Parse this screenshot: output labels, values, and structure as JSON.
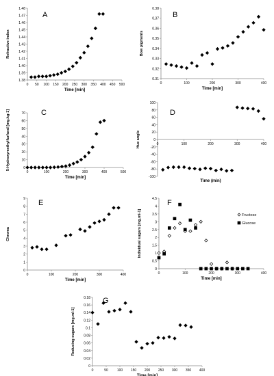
{
  "chart_data": [
    {
      "id": "A",
      "type": "scatter",
      "panel_label": "A",
      "xlabel": "Time [min]",
      "ylabel": "Refractive index",
      "xlim": [
        0,
        500
      ],
      "ylim": [
        1.38,
        1.48
      ],
      "xticks": [
        0,
        50,
        100,
        150,
        200,
        250,
        300,
        350,
        400,
        450,
        500
      ],
      "yticks": [
        1.38,
        1.39,
        1.4,
        1.41,
        1.42,
        1.43,
        1.44,
        1.45,
        1.46,
        1.47,
        1.48
      ],
      "xtick_labels": [
        "0",
        "50",
        "100",
        "150",
        "200",
        "250",
        "300",
        "350",
        "400",
        "450",
        "500"
      ],
      "ytick_labels": [
        "1.38",
        "1.39",
        "1.40",
        "1.41",
        "1.42",
        "1.43",
        "1.44",
        "1.45",
        "1.46",
        "1.47",
        "1.48"
      ],
      "series": [
        {
          "marker": "diamond",
          "filled": true,
          "x": [
            20,
            40,
            60,
            80,
            100,
            120,
            140,
            160,
            180,
            200,
            220,
            240,
            260,
            280,
            300,
            320,
            340,
            360,
            380,
            400
          ],
          "y": [
            1.384,
            1.384,
            1.385,
            1.385,
            1.385,
            1.386,
            1.387,
            1.388,
            1.39,
            1.392,
            1.395,
            1.399,
            1.404,
            1.411,
            1.418,
            1.427,
            1.438,
            1.452,
            1.472,
            1.472
          ]
        }
      ]
    },
    {
      "id": "B",
      "type": "scatter",
      "panel_label": "B",
      "xlabel": "Time [min]",
      "ylabel": "Bow pigments",
      "xlim": [
        0,
        400
      ],
      "ylim": [
        0.31,
        0.38
      ],
      "xticks": [
        0,
        100,
        200,
        300,
        400
      ],
      "yticks": [
        0.31,
        0.32,
        0.33,
        0.34,
        0.35,
        0.36,
        0.37,
        0.38
      ],
      "xtick_labels": [
        "0",
        "100",
        "200",
        "300",
        "400"
      ],
      "ytick_labels": [
        "0.31",
        "0.32",
        "0.33",
        "0.34",
        "0.35",
        "0.36",
        "0.37",
        "0.38"
      ],
      "series": [
        {
          "marker": "diamond",
          "filled": true,
          "x": [
            20,
            40,
            60,
            80,
            100,
            120,
            140,
            160,
            180,
            200,
            220,
            240,
            260,
            280,
            300,
            320,
            340,
            360,
            380,
            400
          ],
          "y": [
            0.3245,
            0.3235,
            0.3225,
            0.3215,
            0.3205,
            0.3255,
            0.3225,
            0.3335,
            0.3355,
            0.3245,
            0.3395,
            0.3405,
            0.3425,
            0.3455,
            0.3515,
            0.3565,
            0.3615,
            0.3655,
            0.3715,
            0.3585
          ]
        }
      ]
    },
    {
      "id": "C",
      "type": "scatter",
      "panel_label": "C",
      "xlabel": "Time  [min]",
      "ylabel": "5-Hydroxymethylfurfural  [mg.kg-1]",
      "xlim": [
        0,
        500
      ],
      "ylim": [
        0,
        70
      ],
      "xticks": [
        0,
        100,
        200,
        300,
        400,
        500
      ],
      "yticks": [
        0,
        10,
        20,
        30,
        40,
        50,
        60,
        70
      ],
      "xtick_labels": [
        "0",
        "100",
        "200",
        "300",
        "400",
        "500"
      ],
      "ytick_labels": [
        "0",
        "10",
        "20",
        "30",
        "40",
        "50",
        "60",
        "70"
      ],
      "series": [
        {
          "marker": "diamond",
          "filled": true,
          "x": [
            0,
            20,
            40,
            60,
            80,
            100,
            120,
            140,
            160,
            180,
            200,
            220,
            240,
            260,
            280,
            300,
            320,
            340,
            360,
            380,
            400
          ],
          "y": [
            0,
            0,
            0,
            0,
            0,
            0,
            0,
            0.3,
            0.6,
            1.2,
            1.8,
            3,
            5,
            7,
            10,
            14,
            19,
            26,
            43,
            58,
            60
          ]
        }
      ]
    },
    {
      "id": "D",
      "type": "scatter",
      "panel_label": "D",
      "xlabel": "Time (min)",
      "ylabel": "Hue angle",
      "xlim": [
        0,
        400
      ],
      "ylim": [
        -100,
        100
      ],
      "xticks": [
        0,
        100,
        200,
        300,
        400
      ],
      "yticks": [
        -100,
        -80,
        -60,
        -40,
        -20,
        0,
        20,
        40,
        60,
        80,
        100
      ],
      "xtick_labels": [
        "0",
        "100",
        "200",
        "300",
        "400"
      ],
      "ytick_labels": [
        "-100",
        "-80",
        "-60",
        "-40",
        "-20",
        "0",
        "20",
        "40",
        "60",
        "80",
        "100"
      ],
      "series": [
        {
          "marker": "diamond",
          "filled": true,
          "x": [
            20,
            40,
            60,
            80,
            100,
            120,
            140,
            160,
            180,
            200,
            220,
            240,
            260,
            280,
            300,
            320,
            340,
            360,
            380,
            400
          ],
          "y": [
            -82,
            -76,
            -75,
            -75,
            -75,
            -78,
            -79,
            -81,
            -78,
            -79,
            -84,
            -81,
            -85,
            -84,
            87,
            85,
            84,
            83,
            77,
            56
          ]
        }
      ]
    },
    {
      "id": "E",
      "type": "scatter",
      "panel_label": "E",
      "xlabel": "Time [min]",
      "ylabel": "Chroma",
      "xlim": [
        0,
        400
      ],
      "ylim": [
        0,
        9
      ],
      "xticks": [
        0,
        100,
        200,
        300,
        400
      ],
      "yticks": [
        0,
        1,
        2,
        3,
        4,
        5,
        6,
        7,
        8,
        9
      ],
      "xtick_labels": [
        "0",
        "100",
        "200",
        "300",
        "400"
      ],
      "ytick_labels": [
        "0",
        "1",
        "2",
        "3",
        "4",
        "5",
        "6",
        "7",
        "8",
        "9"
      ],
      "series": [
        {
          "marker": "diamond",
          "filled": true,
          "x": [
            20,
            40,
            60,
            80,
            120,
            160,
            180,
            220,
            240,
            260,
            280,
            300,
            320,
            340,
            360,
            380
          ],
          "y": [
            2.8,
            2.9,
            2.6,
            2.6,
            3.1,
            4.3,
            4.4,
            5.1,
            4.9,
            5.4,
            5.9,
            6.1,
            6.3,
            7.0,
            7.8,
            7.8
          ]
        }
      ]
    },
    {
      "id": "F",
      "type": "scatter",
      "panel_label": "F",
      "xlabel": "Time [min]",
      "ylabel": "Individual sugars [mg.ml-1]",
      "xlim": [
        0,
        400
      ],
      "ylim": [
        0,
        4.5
      ],
      "xticks": [
        0,
        100,
        200,
        300,
        400
      ],
      "yticks": [
        0,
        0.5,
        1,
        1.5,
        2,
        2.5,
        3,
        3.5,
        4,
        4.5
      ],
      "xtick_labels": [
        "0",
        "100",
        "200",
        "300",
        "400"
      ],
      "ytick_labels": [
        "0",
        "0.5",
        "1",
        "1.5",
        "2",
        "2.5",
        "3",
        "3.5",
        "4",
        "4.5"
      ],
      "series": [
        {
          "name": "Fructose",
          "marker": "diamond",
          "filled": false,
          "x": [
            0,
            20,
            40,
            60,
            80,
            100,
            120,
            140,
            160,
            180,
            200,
            220,
            240,
            260,
            280
          ],
          "y": [
            1.0,
            1.1,
            2.1,
            2.6,
            2.9,
            2.4,
            2.4,
            2.8,
            3.0,
            1.8,
            0.3,
            0.0,
            0.0,
            0.4,
            0.0
          ]
        },
        {
          "name": "Glucose",
          "marker": "square",
          "filled": true,
          "x": [
            0,
            20,
            40,
            60,
            80,
            100,
            120,
            140,
            160,
            180,
            200,
            220,
            240,
            260,
            280,
            300,
            320,
            340
          ],
          "y": [
            0.7,
            0.95,
            2.6,
            3.2,
            4.1,
            2.5,
            3.1,
            2.6,
            0,
            0,
            0,
            0,
            0,
            0,
            0,
            0,
            0,
            0
          ]
        }
      ],
      "legend_position": "right"
    },
    {
      "id": "G",
      "type": "scatter",
      "panel_label": "G",
      "xlabel": "Time [min]",
      "ylabel": "Reducing sugars [mg.ml-1]",
      "xlim": [
        0,
        400
      ],
      "ylim": [
        0,
        0.18
      ],
      "xticks": [
        0,
        50,
        100,
        150,
        200,
        250,
        300,
        350,
        400
      ],
      "yticks": [
        0,
        0.02,
        0.04,
        0.06,
        0.08,
        0.1,
        0.12,
        0.14,
        0.16,
        0.18
      ],
      "xtick_labels": [
        "0",
        "50",
        "100",
        "150",
        "200",
        "250",
        "300",
        "350",
        "400"
      ],
      "ytick_labels": [
        "0",
        "0.02",
        "0.04",
        "0.06",
        "0.08",
        "0.1",
        "0.12",
        "0.14",
        "0.16",
        "0.18"
      ],
      "series": [
        {
          "marker": "diamond",
          "filled": true,
          "x": [
            0,
            20,
            40,
            60,
            80,
            100,
            120,
            140,
            160,
            180,
            200,
            220,
            240,
            260,
            280,
            300,
            320,
            340,
            360
          ],
          "y": [
            0.14,
            0.11,
            0.165,
            0.142,
            0.145,
            0.148,
            0.165,
            0.142,
            0.063,
            0.047,
            0.058,
            0.06,
            0.074,
            0.073,
            0.076,
            0.072,
            0.107,
            0.106,
            0.102
          ]
        }
      ]
    }
  ]
}
